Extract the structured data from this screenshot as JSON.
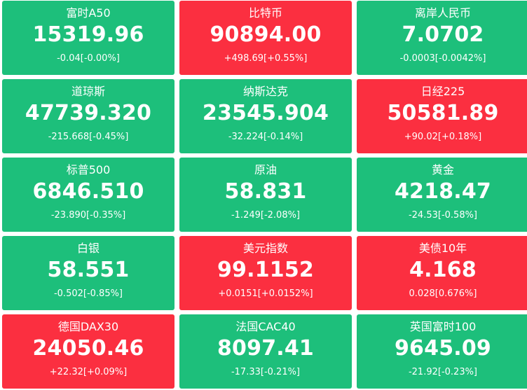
{
  "colors": {
    "down": "#1dbf7b",
    "up": "#fb2f40",
    "text": "#ffffff"
  },
  "tiles": [
    {
      "name": "富时A50",
      "price": "15319.96",
      "change": "-0.04[-0.00%]",
      "trend": "down"
    },
    {
      "name": "比特币",
      "price": "90894.00",
      "change": "+498.69[+0.55%]",
      "trend": "up"
    },
    {
      "name": "离岸人民币",
      "price": "7.0702",
      "change": "-0.0003[-0.0042%]",
      "trend": "down"
    },
    {
      "name": "道琼斯",
      "price": "47739.320",
      "change": "-215.668[-0.45%]",
      "trend": "down"
    },
    {
      "name": "纳斯达克",
      "price": "23545.904",
      "change": "-32.224[-0.14%]",
      "trend": "down"
    },
    {
      "name": "日经225",
      "price": "50581.89",
      "change": "+90.02[+0.18%]",
      "trend": "up"
    },
    {
      "name": "标普500",
      "price": "6846.510",
      "change": "-23.890[-0.35%]",
      "trend": "down"
    },
    {
      "name": "原油",
      "price": "58.831",
      "change": "-1.249[-2.08%]",
      "trend": "down"
    },
    {
      "name": "黄金",
      "price": "4218.47",
      "change": "-24.53[-0.58%]",
      "trend": "down"
    },
    {
      "name": "白银",
      "price": "58.551",
      "change": "-0.502[-0.85%]",
      "trend": "down"
    },
    {
      "name": "美元指数",
      "price": "99.1152",
      "change": "+0.0151[+0.0152%]",
      "trend": "up"
    },
    {
      "name": "美债10年",
      "price": "4.168",
      "change": "0.028[0.676%]",
      "trend": "up"
    },
    {
      "name": "德国DAX30",
      "price": "24050.46",
      "change": "+22.32[+0.09%]",
      "trend": "up"
    },
    {
      "name": "法国CAC40",
      "price": "8097.41",
      "change": "-17.33[-0.21%]",
      "trend": "down"
    },
    {
      "name": "英国富时100",
      "price": "9645.09",
      "change": "-21.92[-0.23%]",
      "trend": "down"
    }
  ]
}
